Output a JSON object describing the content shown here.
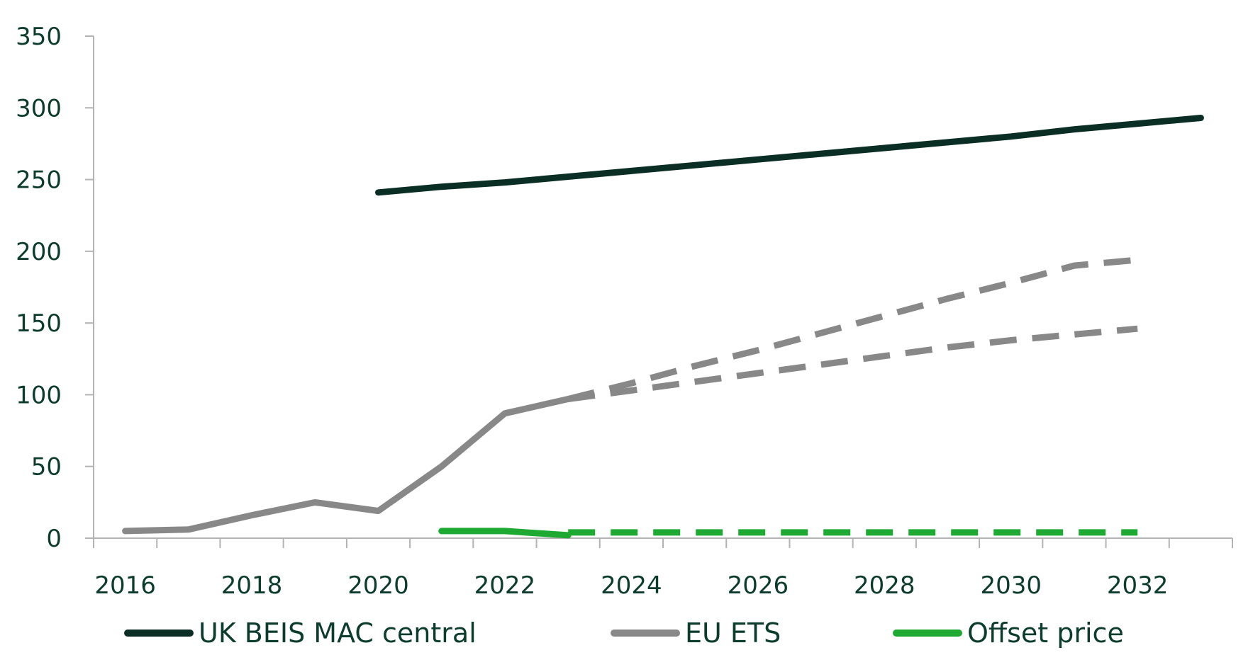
{
  "chart_data": {
    "type": "line",
    "title": "",
    "xlabel": "",
    "ylabel": "",
    "xlim": [
      2015.5,
      2033.5
    ],
    "ylim": [
      0,
      350
    ],
    "x_ticks": [
      2016,
      2018,
      2020,
      2022,
      2024,
      2026,
      2028,
      2030,
      2032
    ],
    "y_ticks": [
      0,
      50,
      100,
      150,
      200,
      250,
      300,
      350
    ],
    "grid": false,
    "legend_position": "bottom",
    "series": [
      {
        "name": "UK BEIS MAC central",
        "color": "#0b2e24",
        "style": "solid",
        "points": [
          [
            2020,
            241
          ],
          [
            2021,
            245
          ],
          [
            2022,
            248
          ],
          [
            2023,
            252
          ],
          [
            2024,
            256
          ],
          [
            2025,
            260
          ],
          [
            2026,
            264
          ],
          [
            2027,
            268
          ],
          [
            2028,
            272
          ],
          [
            2029,
            276
          ],
          [
            2030,
            280
          ],
          [
            2031,
            285
          ],
          [
            2032,
            289
          ],
          [
            2033,
            293
          ]
        ]
      },
      {
        "name": "EU ETS",
        "color": "#888888",
        "style": "solid",
        "points": [
          [
            2016,
            5
          ],
          [
            2017,
            6
          ],
          [
            2018,
            16
          ],
          [
            2019,
            25
          ],
          [
            2020,
            19
          ],
          [
            2021,
            50
          ],
          [
            2022,
            87
          ],
          [
            2023,
            97
          ]
        ]
      },
      {
        "name": "",
        "color": "#888888",
        "style": "dashed",
        "points": [
          [
            2023,
            97
          ],
          [
            2024,
            108
          ],
          [
            2025,
            120
          ],
          [
            2026,
            131
          ],
          [
            2027,
            143
          ],
          [
            2028,
            155
          ],
          [
            2029,
            167
          ],
          [
            2030,
            178
          ],
          [
            2031,
            190
          ],
          [
            2032,
            194
          ]
        ]
      },
      {
        "name": "",
        "color": "#888888",
        "style": "dashed",
        "points": [
          [
            2023,
            97
          ],
          [
            2024,
            103
          ],
          [
            2025,
            109
          ],
          [
            2026,
            115
          ],
          [
            2027,
            121
          ],
          [
            2028,
            127
          ],
          [
            2029,
            133
          ],
          [
            2030,
            138
          ],
          [
            2031,
            142
          ],
          [
            2032,
            146
          ]
        ]
      },
      {
        "name": "Offset price",
        "color": "#1eaa32",
        "style": "solid",
        "points": [
          [
            2021,
            5
          ],
          [
            2022,
            5
          ],
          [
            2023,
            2
          ]
        ]
      },
      {
        "name": "",
        "color": "#1eaa32",
        "style": "dashed",
        "points": [
          [
            2023,
            4
          ],
          [
            2032,
            4
          ]
        ]
      }
    ],
    "legend": [
      {
        "label": "UK BEIS MAC central",
        "color": "#0b2e24"
      },
      {
        "label": "EU ETS",
        "color": "#888888"
      },
      {
        "label": "Offset price",
        "color": "#1eaa32"
      }
    ]
  }
}
